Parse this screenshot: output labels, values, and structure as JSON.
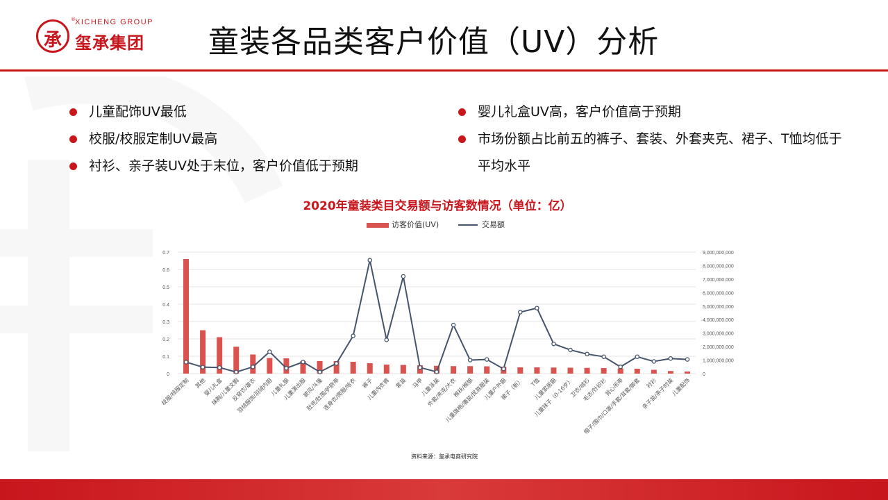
{
  "header": {
    "logo_en": "XICHENG GROUP",
    "logo_cn": "玺承集团",
    "logo_char": "承",
    "logo_reg": "®",
    "title": "童装各品类客户价值（UV）分析"
  },
  "bullets_left": [
    "儿童配饰UV最低",
    "校服/校服定制UV最高",
    "衬衫、亲子装UV处于末位，客户价值低于预期"
  ],
  "bullets_right": [
    "婴儿礼盒UV高，客户价值高于预期",
    "市场份额占比前五的裤子、套装、外套夹克、裙子、T恤均低于平均水平"
  ],
  "colors": {
    "accent": "#c8161d",
    "bar": "#d9534f",
    "line": "#44546a"
  },
  "chart_data": {
    "type": "bar",
    "title": "2020年童装类目交易额与访客数情况（单位：亿）",
    "legend_position": "top",
    "grid": true,
    "categories": [
      "校服/校服定制",
      "其他",
      "婴儿礼盒",
      "抹胸/儿童文胸",
      "反穿衣/罩衣",
      "羽绒服饰/羽绒内胆",
      "儿童礼服",
      "儿童演出服",
      "披风/斗篷",
      "肚兜/肚围/护脐带",
      "连身衣/爬服/哈衣",
      "裤子",
      "儿童内衣裤",
      "套装",
      "马甲",
      "儿童泳装",
      "外套/夹克/大衣",
      "棉袄/棉服",
      "儿童旗袍/唐装/民族服装",
      "儿童户外服",
      "裙子（新）",
      "T恤",
      "儿童家居服",
      "儿童袜子（0-16岁）",
      "卫衣/绒衫",
      "毛衣/针织衫",
      "背心吊带",
      "帽子/围巾/口罩/手套/耳套/脚套",
      "衬衫",
      "亲子装/亲子时装",
      "儿童配饰"
    ],
    "series": [
      {
        "name": "访客价值(UV)",
        "type": "bar",
        "axis": "left",
        "values": [
          0.66,
          0.25,
          0.21,
          0.155,
          0.11,
          0.09,
          0.088,
          0.072,
          0.072,
          0.072,
          0.068,
          0.06,
          0.052,
          0.05,
          0.048,
          0.045,
          0.043,
          0.043,
          0.042,
          0.04,
          0.036,
          0.036,
          0.035,
          0.034,
          0.033,
          0.032,
          0.03,
          0.028,
          0.022,
          0.015,
          0.012
        ]
      },
      {
        "name": "交易额",
        "type": "line",
        "axis": "right",
        "values": [
          850000000,
          480000000,
          450000000,
          120000000,
          500000000,
          1620000000,
          400000000,
          860000000,
          120000000,
          750000000,
          2800000000,
          8400000000,
          2500000000,
          7200000000,
          450000000,
          130000000,
          3600000000,
          1000000000,
          1050000000,
          350000000,
          4550000000,
          4850000000,
          2200000000,
          1750000000,
          1450000000,
          1250000000,
          500000000,
          1250000000,
          900000000,
          1120000000,
          1050000000
        ]
      }
    ],
    "ylim_left": [
      0,
      0.7
    ],
    "yticks_left": [
      "0",
      "0.1",
      "0.2",
      "0.3",
      "0.4",
      "0.5",
      "0.6",
      "0.7"
    ],
    "ylim_right": [
      0,
      9000000000
    ],
    "yticks_right": [
      "0",
      "1,000,000,000",
      "2,000,000,000",
      "3,000,000,000",
      "4,000,000,000",
      "5,000,000,000",
      "6,000,000,000",
      "7,000,000,000",
      "8,000,000,000",
      "9,000,000,000"
    ],
    "source": "资料来源：玺承电商研究院"
  }
}
